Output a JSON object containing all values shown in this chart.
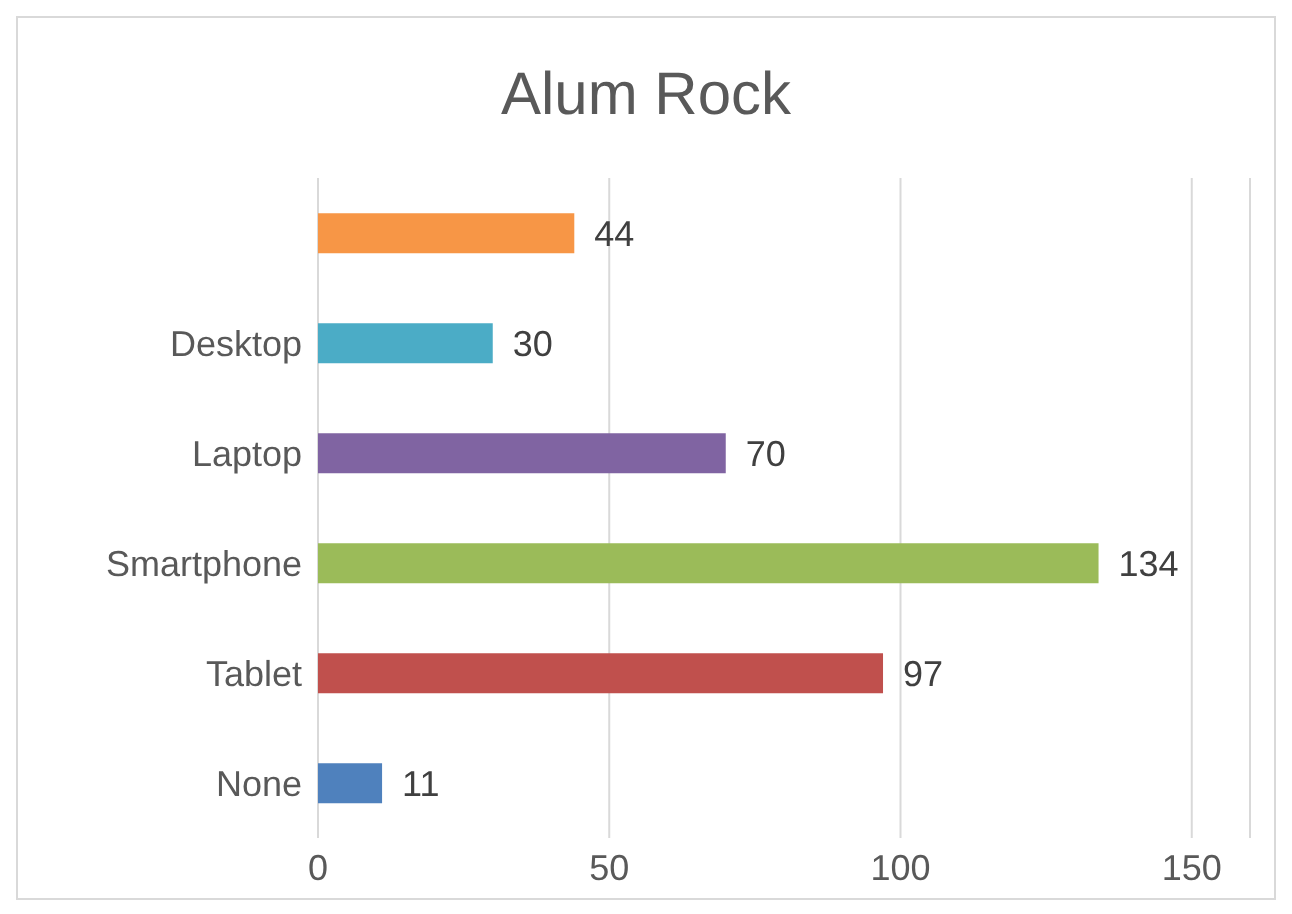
{
  "chart_data": {
    "type": "bar",
    "orientation": "horizontal",
    "title": "Alum Rock",
    "categories": [
      null,
      "Desktop",
      "Laptop",
      "Smartphone",
      "Tablet",
      "None"
    ],
    "values": [
      44,
      30,
      70,
      134,
      97,
      11
    ],
    "colors": [
      "#f79646",
      "#4bacc6",
      "#8064a2",
      "#9bbb59",
      "#c0504d",
      "#4f81bd"
    ],
    "xlim": [
      0,
      160
    ],
    "xticks": [
      0,
      50,
      100,
      150
    ],
    "grid": "x",
    "data_labels": true
  }
}
